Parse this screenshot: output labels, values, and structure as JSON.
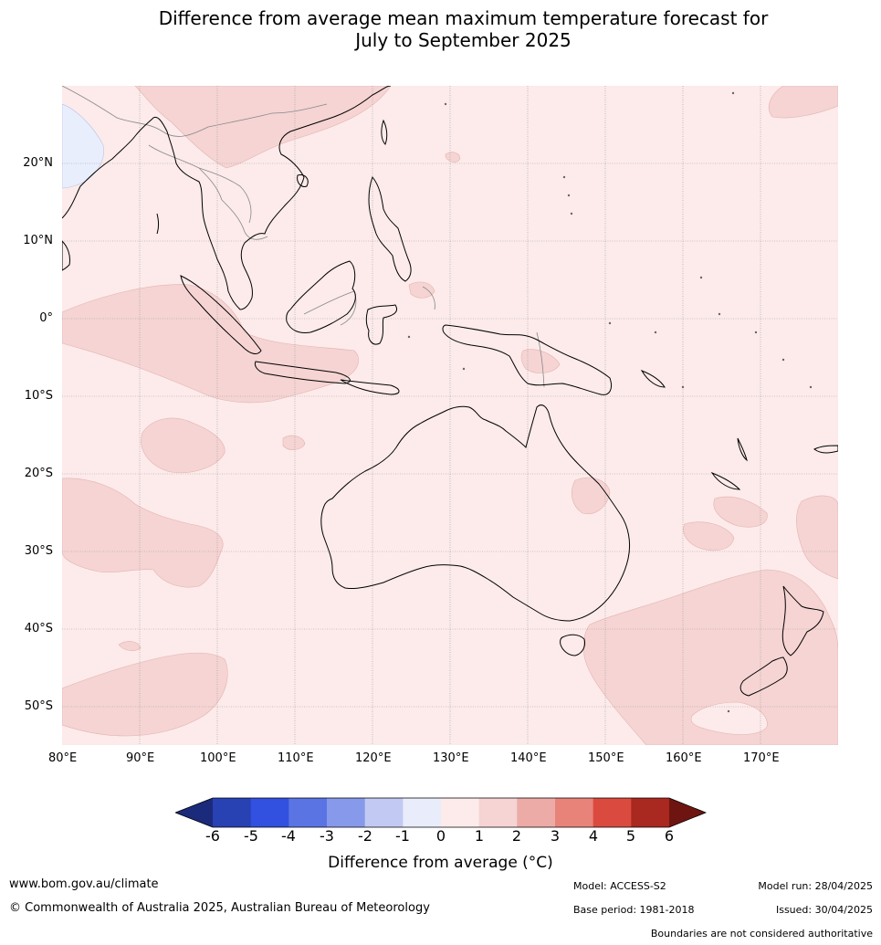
{
  "title": {
    "line1": "Difference from average mean maximum temperature forecast for",
    "line2": "July to September 2025"
  },
  "map": {
    "lat_labels": [
      "20°N",
      "10°N",
      "0°",
      "10°S",
      "20°S",
      "30°S",
      "40°S",
      "50°S"
    ],
    "lon_labels": [
      "80°E",
      "90°E",
      "100°E",
      "110°E",
      "120°E",
      "130°E",
      "140°E",
      "150°E",
      "160°E",
      "170°E"
    ],
    "extent": {
      "lon_min": 80,
      "lon_max": 180,
      "lat_min": -55,
      "lat_max": 30
    },
    "background_category": "0 to 1",
    "colors": {
      "c_0_1": "#fcebea",
      "c_1_2": "#f5d4d3",
      "c_m1_0": "#e8eefc",
      "coast": "#000000",
      "border": "#888888",
      "grid": "#999999"
    }
  },
  "colorbar": {
    "ticks": [
      "-6",
      "-5",
      "-4",
      "-3",
      "-2",
      "-1",
      "0",
      "1",
      "2",
      "3",
      "4",
      "5",
      "6"
    ],
    "colors": [
      "#1b2a7a",
      "#2841b3",
      "#3251e0",
      "#5b74e4",
      "#8799ea",
      "#c2c9f2",
      "#e8ecfb",
      "#fcebea",
      "#f5d4d3",
      "#ecaba6",
      "#e8837a",
      "#db4a3e",
      "#a9281f",
      "#6e1511"
    ],
    "label": "Difference from average (°C)"
  },
  "footer": {
    "website": "www.bom.gov.au/climate",
    "copyright": "© Commonwealth of Australia 2025, Australian Bureau of Meteorology",
    "model": "Model: ACCESS-S2",
    "base_period": "Base period: 1981-2018",
    "model_run": "Model run: 28/04/2025",
    "issued": "Issued: 30/04/2025",
    "disclaimer": "Boundaries are not considered authoritative"
  }
}
